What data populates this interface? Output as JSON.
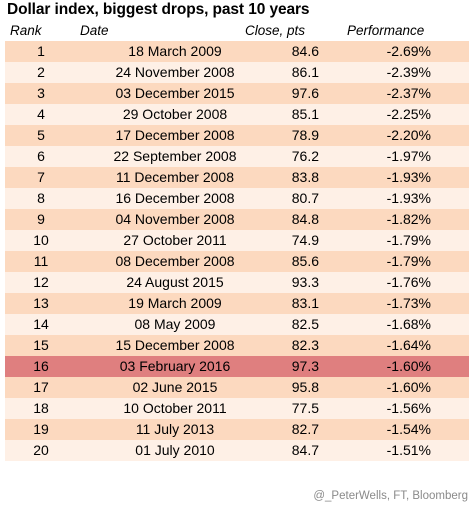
{
  "title": "Dollar index, biggest drops, past 10 years",
  "columns": {
    "rank": "Rank",
    "date": "Date",
    "close": "Close, pts",
    "performance": "Performance"
  },
  "chart_data": {
    "type": "table",
    "title": "Dollar index, biggest drops, past 10 years",
    "columns": [
      "Rank",
      "Date",
      "Close, pts",
      "Performance"
    ],
    "highlighted_rank": 16,
    "rows": [
      {
        "rank": "1",
        "date": "18 March 2009",
        "close": "84.6",
        "performance": "-2.69%"
      },
      {
        "rank": "2",
        "date": "24 November 2008",
        "close": "86.1",
        "performance": "-2.39%"
      },
      {
        "rank": "3",
        "date": "03 December 2015",
        "close": "97.6",
        "performance": "-2.37%"
      },
      {
        "rank": "4",
        "date": "29 October 2008",
        "close": "85.1",
        "performance": "-2.25%"
      },
      {
        "rank": "5",
        "date": "17 December 2008",
        "close": "78.9",
        "performance": "-2.20%"
      },
      {
        "rank": "6",
        "date": "22 September 2008",
        "close": "76.2",
        "performance": "-1.97%"
      },
      {
        "rank": "7",
        "date": "11 December 2008",
        "close": "83.8",
        "performance": "-1.93%"
      },
      {
        "rank": "8",
        "date": "16 December 2008",
        "close": "80.7",
        "performance": "-1.93%"
      },
      {
        "rank": "9",
        "date": "04 November 2008",
        "close": "84.8",
        "performance": "-1.82%"
      },
      {
        "rank": "10",
        "date": "27 October 2011",
        "close": "74.9",
        "performance": "-1.79%"
      },
      {
        "rank": "11",
        "date": "08 December 2008",
        "close": "85.6",
        "performance": "-1.79%"
      },
      {
        "rank": "12",
        "date": "24 August 2015",
        "close": "93.3",
        "performance": "-1.76%"
      },
      {
        "rank": "13",
        "date": "19 March 2009",
        "close": "83.1",
        "performance": "-1.73%"
      },
      {
        "rank": "14",
        "date": "08 May 2009",
        "close": "82.5",
        "performance": "-1.68%"
      },
      {
        "rank": "15",
        "date": "15 December 2008",
        "close": "82.3",
        "performance": "-1.64%"
      },
      {
        "rank": "16",
        "date": "03 February 2016",
        "close": "97.3",
        "performance": "-1.60%"
      },
      {
        "rank": "17",
        "date": "02 June 2015",
        "close": "95.8",
        "performance": "-1.60%"
      },
      {
        "rank": "18",
        "date": "10 October 2011",
        "close": "77.5",
        "performance": "-1.56%"
      },
      {
        "rank": "19",
        "date": "11 July 2013",
        "close": "82.7",
        "performance": "-1.54%"
      },
      {
        "rank": "20",
        "date": "01 July 2010",
        "close": "84.7",
        "performance": "-1.51%"
      }
    ]
  },
  "colors": {
    "row_odd": "#fcd9bf",
    "row_even": "#fef0e6",
    "row_highlight": "#df7f7f"
  },
  "footer": "@_PeterWells, FT, Bloomberg"
}
